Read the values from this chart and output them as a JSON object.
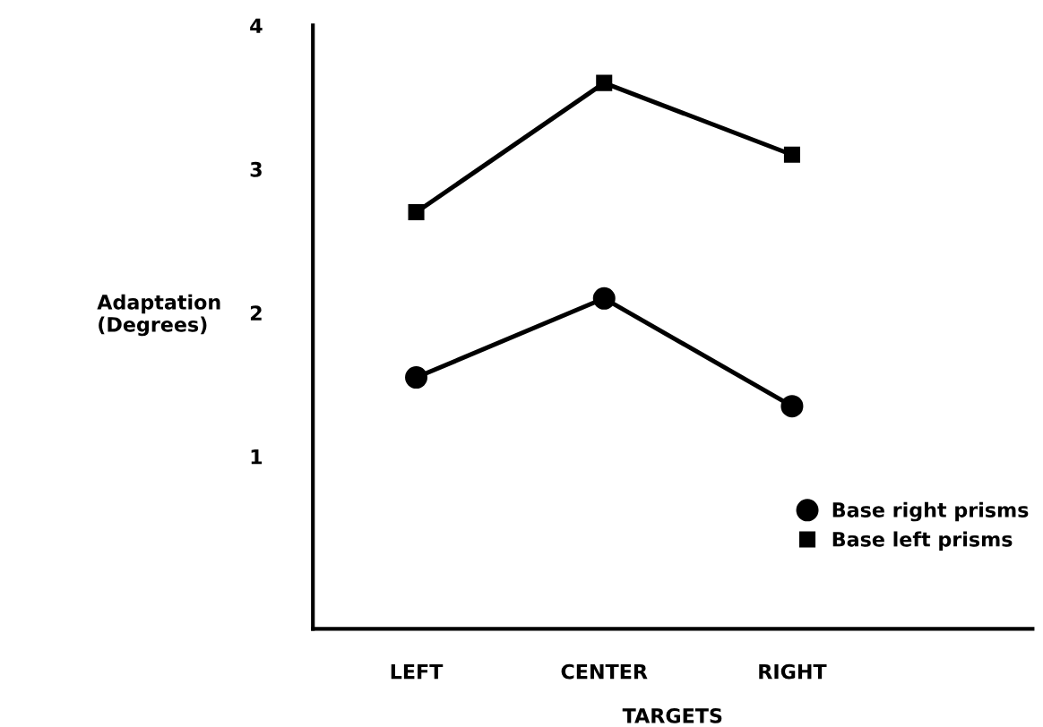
{
  "chart_data": {
    "type": "line",
    "xlabel": "TARGETS",
    "ylabel": "Adaptation\n(Degrees)",
    "categories": [
      "LEFT",
      "CENTER",
      "RIGHT"
    ],
    "series": [
      {
        "name": "Base right prisms",
        "color": "#000000",
        "marker": "circle",
        "values": [
          1.55,
          2.1,
          1.35
        ]
      },
      {
        "name": "Base left prisms",
        "color": "#000000",
        "marker": "square",
        "values": [
          2.7,
          3.6,
          3.1
        ]
      }
    ],
    "ylim": [
      -0.2,
      4
    ],
    "yticks": [
      1,
      2,
      3,
      4
    ],
    "grid": false,
    "legend": "bottom right",
    "line_style": "solid"
  }
}
